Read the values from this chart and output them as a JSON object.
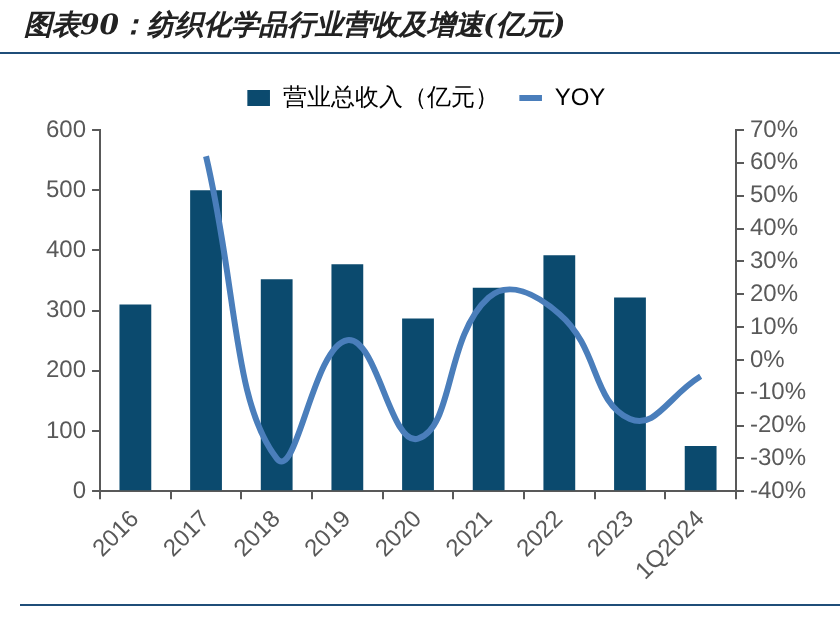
{
  "chart_data": {
    "type": "bar",
    "title": "图表90：纺织化学品行业营收及增速(亿元)",
    "categories": [
      "2016",
      "2017",
      "2018",
      "2019",
      "2020",
      "2021",
      "2022",
      "2023",
      "1Q2024"
    ],
    "series": [
      {
        "name": "营业总收入（亿元）",
        "color": "#0b4a6e",
        "values": [
          310,
          500,
          352,
          377,
          287,
          338,
          392,
          322,
          75
        ]
      },
      {
        "name": "YOY",
        "type": "line",
        "axis": "y2",
        "color": "#4a7ebb",
        "values": [
          null,
          62,
          -30,
          6,
          -24,
          19,
          14,
          -18,
          -5
        ]
      }
    ],
    "ylim": [
      0,
      600
    ],
    "yticks": [
      0,
      100,
      200,
      300,
      400,
      500,
      600
    ],
    "y2lim": [
      -40,
      70
    ],
    "y2ticks": [
      {
        "value": -40,
        "label": "-40%"
      },
      {
        "value": -30,
        "label": "-30%"
      },
      {
        "value": -20,
        "label": "-20%"
      },
      {
        "value": -10,
        "label": "-10%"
      },
      {
        "value": 0,
        "label": "0%"
      },
      {
        "value": 10,
        "label": "10%"
      },
      {
        "value": 20,
        "label": "20%"
      },
      {
        "value": 30,
        "label": "30%"
      },
      {
        "value": 40,
        "label": "40%"
      },
      {
        "value": 50,
        "label": "50%"
      },
      {
        "value": 60,
        "label": "60%"
      },
      {
        "value": 70,
        "label": "70%"
      }
    ],
    "legend": "top"
  }
}
